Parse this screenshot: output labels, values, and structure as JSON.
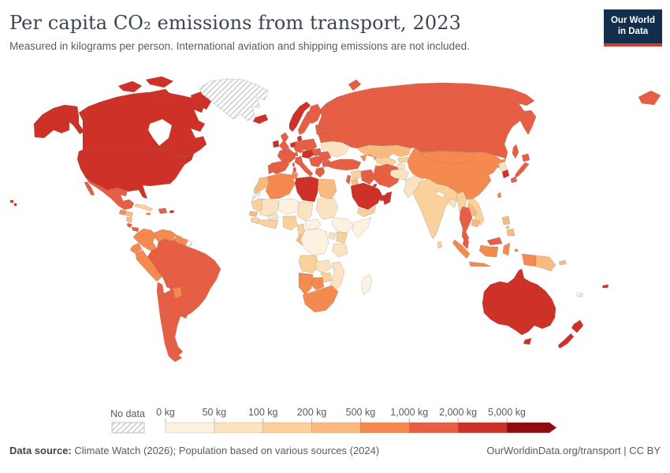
{
  "header": {
    "title": "Per capita CO₂ emissions from transport, 2023",
    "subtitle": "Measured in kilograms per person. International aviation and shipping emissions are not included."
  },
  "logo": {
    "line1": "Our World",
    "line2": "in Data",
    "bg_color": "#112e4d",
    "accent_color": "#d23b31"
  },
  "legend": {
    "no_data_label": "No data",
    "tick_labels": [
      "0 kg",
      "50 kg",
      "100 kg",
      "200 kg",
      "500 kg",
      "1,000 kg",
      "2,000 kg",
      "5,000 kg"
    ],
    "bin_colors": [
      "#FDF2E2",
      "#FBE3C1",
      "#FAD09B",
      "#F9BA80",
      "#F58A51",
      "#E65E44",
      "#CE3127",
      "#8F0D10"
    ]
  },
  "footer": {
    "source_label": "Data source:",
    "source_text": " Climate Watch (2026); Population based on various sources (2024)",
    "right_text": "OurWorldinData.org/transport | CC BY"
  },
  "chart_data": {
    "type": "choropleth_map",
    "title": "Per capita CO₂ emissions from transport, 2023",
    "unit": "kg of CO₂ per person",
    "bin_thresholds_kg": [
      0,
      50,
      100,
      200,
      500,
      1000,
      2000,
      5000
    ],
    "bin_labels": [
      "0–50 kg",
      "50–100 kg",
      "100–200 kg",
      "200–500 kg",
      "500–1,000 kg",
      "1,000–2,000 kg",
      "2,000–5,000 kg",
      "5,000+ kg"
    ],
    "legend_position": "bottom",
    "no_data_regions": [
      "Greenland",
      "Western Sahara",
      "French Guiana",
      "New Caledonia"
    ],
    "country_bins": {
      "canada": 7,
      "usa": 7,
      "greenland": 0,
      "iceland": 7,
      "mexico": 6,
      "guatemala": 5,
      "honduras": 4,
      "nicaragua": 4,
      "costa-rica": 6,
      "panama": 6,
      "cuba": 3,
      "hispaniola": 6,
      "jamaica": 5,
      "puerto-rico": 7,
      "colombia": 5,
      "venezuela": 5,
      "guyana": 5,
      "suriname": 5,
      "french-guiana": 0,
      "ecuador": 5,
      "peru": 5,
      "brazil": 6,
      "bolivia": 6,
      "paraguay": 5,
      "uruguay": 6,
      "chile": 6,
      "argentina": 6,
      "ireland": 7,
      "uk": 6,
      "norway": 7,
      "sweden": 6,
      "finland": 6,
      "denmark": 7,
      "baltics": 6,
      "benelux": 7,
      "germany": 6,
      "france": 6,
      "spain": 6,
      "portugal": 6,
      "italy": 6,
      "switzerland": 6,
      "czech-austria": 7,
      "poland": 6,
      "hungary": 6,
      "balkans": 6,
      "romania": 6,
      "bulgaria": 6,
      "greece": 6,
      "belarus": 6,
      "ukraine": 2,
      "russia": 6,
      "kazakhstan": 4,
      "uzbekistan": 3,
      "turkmenistan": 5,
      "kyrgyzstan": 3,
      "tajikistan": 2,
      "afghanistan": 2,
      "pakistan": 2,
      "india": 3,
      "nepal": 1,
      "bangladesh": 2,
      "sri-lanka": 3,
      "myanmar": 3,
      "china": 5,
      "mongolia": 5,
      "taiwan": 5,
      "north-korea": 2,
      "south-korea": 7,
      "japan": 6,
      "vietnam": 3,
      "laos": 4,
      "thailand": 6,
      "cambodia": 4,
      "malaysia": 6,
      "indonesia": 5,
      "philippines": 4,
      "papua-new-guinea": 4,
      "turkey": 6,
      "syria": 3,
      "israel": 6,
      "jordan": 4,
      "iraq": 6,
      "iran": 6,
      "saudi-arabia": 7,
      "kuwait": 7,
      "uae": 7,
      "oman": 7,
      "yemen": 3,
      "caucasus": 5,
      "morocco": 4,
      "western-sahara": 0,
      "mauritania": 3,
      "senegal": 4,
      "guinea": 3,
      "mali": 2,
      "burkina-faso": 2,
      "ivory-ghana": 3,
      "algeria": 5,
      "tunisia": 5,
      "libya": 7,
      "egypt": 4,
      "niger": 1,
      "chad": 2,
      "sudan": 2,
      "nigeria": 3,
      "cameroon": 3,
      "central-african-republic": 1,
      "ethiopia": 1,
      "somalia": 1,
      "kenya": 3,
      "uganda": 2,
      "tanzania": 2,
      "gabon-congo": 4,
      "drc": 1,
      "angola": 3,
      "zambia": 2,
      "mozambique": 2,
      "zimbabwe": 3,
      "namibia": 5,
      "botswana": 5,
      "south-africa": 5,
      "madagascar": 1,
      "australia": 7,
      "new-zealand": 7,
      "fiji": 7,
      "new-caledonia": 0
    }
  }
}
